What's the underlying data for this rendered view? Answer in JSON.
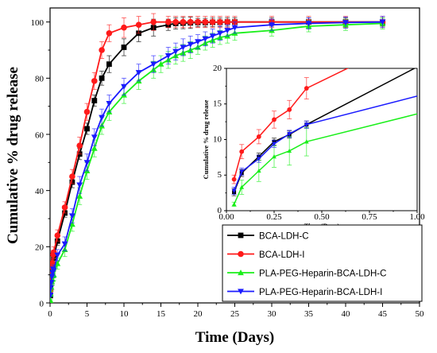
{
  "chart_data": [
    {
      "type": "line",
      "title": "",
      "xlabel": "Time (Days)",
      "ylabel": "Cumulative % drug release",
      "xlim": [
        0,
        50
      ],
      "ylim": [
        0,
        105
      ],
      "xticks": [
        "0",
        "5",
        "10",
        "15",
        "20",
        "25",
        "30",
        "35",
        "40",
        "45",
        "50"
      ],
      "yticks": [
        "0",
        "20",
        "40",
        "60",
        "80",
        "100"
      ],
      "legend_position": "bottom-right",
      "grid": false,
      "series": [
        {
          "name": "BCA-LDH-C",
          "color": "#000000",
          "marker": "square",
          "x": [
            0.04,
            0.08,
            0.17,
            0.25,
            0.33,
            0.42,
            0.5,
            1,
            2,
            3,
            4,
            5,
            6,
            7,
            8,
            10,
            12,
            14,
            16,
            17,
            18,
            19,
            20,
            21,
            22,
            23,
            24,
            25,
            30,
            35,
            40,
            45
          ],
          "y": [
            2.6,
            5.3,
            7.6,
            9.7,
            10.7,
            12.1,
            16,
            22,
            32,
            43,
            53,
            62,
            72,
            80,
            85,
            91,
            96,
            98,
            99,
            99.5,
            99.6,
            99.7,
            99.8,
            99.8,
            99.9,
            99.9,
            100,
            100,
            100,
            100,
            100,
            100
          ],
          "error": [
            0.5,
            0.5,
            0.5,
            0.5,
            0.5,
            0.5,
            1.5,
            1.5,
            1.5,
            2,
            2,
            2,
            2,
            2.5,
            3,
            3,
            3,
            3,
            2,
            2,
            2,
            2,
            1.5,
            1.5,
            1.5,
            1.5,
            1.5,
            1.5,
            1.5,
            1.5,
            1.5,
            1.5
          ]
        },
        {
          "name": "BCA-LDH-I",
          "color": "#ff1a1a",
          "marker": "circle",
          "x": [
            0.04,
            0.08,
            0.17,
            0.25,
            0.33,
            0.42,
            0.5,
            1,
            2,
            3,
            4,
            5,
            6,
            7,
            8,
            10,
            12,
            14,
            16,
            17,
            18,
            19,
            20,
            21,
            22,
            23,
            24,
            25,
            30,
            35,
            40,
            45
          ],
          "y": [
            4.4,
            8.3,
            10.4,
            12.8,
            14.2,
            17.2,
            18,
            24,
            34,
            45,
            56,
            68,
            79,
            90,
            96,
            98,
            99,
            100,
            100,
            100,
            100,
            100,
            100,
            100,
            100,
            100,
            100,
            100,
            100,
            100,
            100,
            100
          ],
          "error": [
            0.6,
            1,
            1,
            1.2,
            1.3,
            1.5,
            2,
            2,
            2,
            2.5,
            3,
            3,
            3,
            3,
            3,
            3.5,
            3,
            3,
            2,
            2,
            2,
            2,
            2,
            2,
            2,
            2,
            2,
            2,
            2,
            2,
            2,
            2
          ]
        },
        {
          "name": "PLA-PEG-Heparin-BCA-LDH-C",
          "color": "#1aef1a",
          "marker": "triangle-up",
          "x": [
            0.04,
            0.08,
            0.17,
            0.25,
            0.33,
            0.42,
            0.5,
            1,
            2,
            3,
            4,
            5,
            6,
            7,
            8,
            10,
            12,
            14,
            15,
            16,
            17,
            18,
            19,
            20,
            21,
            22,
            23,
            24,
            25,
            30,
            35,
            40,
            45
          ],
          "y": [
            0.9,
            3.3,
            5.6,
            7.6,
            8.4,
            9.7,
            10,
            14,
            19,
            28,
            38,
            47,
            55,
            63,
            68,
            74,
            79,
            83,
            85,
            86.5,
            88,
            89,
            90,
            91,
            92.5,
            93.5,
            94.5,
            95,
            96,
            97,
            98.5,
            99,
            99.5
          ],
          "error": [
            0.3,
            1,
            1.5,
            1.5,
            2,
            2,
            2,
            2,
            2.5,
            2.5,
            3,
            3,
            3,
            3,
            3,
            3,
            3,
            3,
            3,
            3,
            3,
            3,
            3,
            2.5,
            2.5,
            2.5,
            2.5,
            2.5,
            2.5,
            2,
            2,
            2,
            2
          ]
        },
        {
          "name": "PLA-PEG-Heparin-BCA-LDH-I",
          "color": "#1a1aff",
          "marker": "triangle-down",
          "x": [
            0.04,
            0.08,
            0.17,
            0.25,
            0.33,
            0.42,
            0.5,
            1,
            2,
            3,
            4,
            5,
            6,
            7,
            8,
            10,
            12,
            14,
            16,
            17,
            18,
            19,
            20,
            21,
            22,
            23,
            24,
            25,
            30,
            35,
            40,
            45
          ],
          "y": [
            2.8,
            5.5,
            7.3,
            9.4,
            10.8,
            12.1,
            11.5,
            17,
            21,
            31,
            42,
            50,
            59,
            66,
            71,
            77,
            82,
            85,
            88,
            89.5,
            91,
            92,
            93,
            94,
            95,
            96,
            97,
            98,
            99,
            99.5,
            99.8,
            100
          ],
          "error": [
            0.5,
            0.5,
            0.5,
            0.5,
            0.5,
            0.5,
            2,
            2,
            2.5,
            2.5,
            3,
            3,
            3,
            3,
            3,
            3,
            3,
            3,
            3,
            3,
            3,
            3,
            2.5,
            2.5,
            2.5,
            2.5,
            2,
            2,
            2,
            2,
            2,
            2
          ]
        }
      ]
    },
    {
      "type": "line",
      "title": "",
      "xlabel": "Time (Days)",
      "ylabel": "Cumulative % drug release",
      "xlim": [
        0,
        1
      ],
      "ylim": [
        0,
        20
      ],
      "xticks": [
        "0.00",
        "0.25",
        "0.50",
        "0.75",
        "1.00"
      ],
      "yticks": [
        "0",
        "5",
        "10",
        "15",
        "20"
      ],
      "grid": false,
      "series": [
        {
          "name": "BCA-LDH-C",
          "color": "#000000",
          "marker": "square",
          "x": [
            0.04,
            0.08,
            0.17,
            0.25,
            0.33,
            0.42,
            1.0
          ],
          "y": [
            2.6,
            5.3,
            7.6,
            9.7,
            10.7,
            12.1,
            20.2
          ],
          "error": [
            0.5,
            0.5,
            0.5,
            0.5,
            0.5,
            0.5,
            0
          ]
        },
        {
          "name": "BCA-LDH-I",
          "color": "#ff1a1a",
          "marker": "circle",
          "x": [
            0.04,
            0.08,
            0.17,
            0.25,
            0.33,
            0.42,
            0.65
          ],
          "y": [
            4.4,
            8.3,
            10.4,
            12.8,
            14.2,
            17.2,
            20.2
          ],
          "error": [
            0.6,
            1.0,
            1.0,
            1.2,
            1.3,
            1.5,
            0
          ]
        },
        {
          "name": "PLA-PEG-Heparin-BCA-LDH-C",
          "color": "#1aef1a",
          "marker": "triangle-up",
          "x": [
            0.04,
            0.08,
            0.17,
            0.25,
            0.33,
            0.42,
            1.0
          ],
          "y": [
            0.9,
            3.3,
            5.6,
            7.6,
            8.4,
            9.7,
            13.6
          ],
          "error": [
            0.3,
            1.0,
            1.5,
            1.5,
            2.0,
            2.0,
            0
          ]
        },
        {
          "name": "PLA-PEG-Heparin-BCA-LDH-I",
          "color": "#1a1aff",
          "marker": "triangle-down",
          "x": [
            0.04,
            0.08,
            0.17,
            0.25,
            0.33,
            0.42,
            1.0
          ],
          "y": [
            2.8,
            5.5,
            7.3,
            9.4,
            10.8,
            12.1,
            16.1
          ],
          "error": [
            0.5,
            0.5,
            0.5,
            0.5,
            0.5,
            0.5,
            0
          ]
        }
      ]
    }
  ]
}
